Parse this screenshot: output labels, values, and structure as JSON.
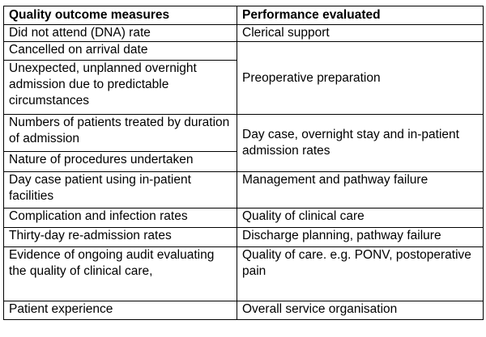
{
  "table": {
    "headers": [
      "Quality outcome measures",
      "Performance evaluated"
    ],
    "rows": [
      {
        "measure": "Did not attend (DNA) rate",
        "performance": "Clerical support"
      },
      {
        "measure": "Cancelled on arrival date",
        "performance": "Preoperative preparation"
      },
      {
        "measure": "Unexpected, unplanned overnight admission due to predictable circumstances",
        "performance": "Preoperative preparation"
      },
      {
        "measure": "Numbers of patients treated by duration of admission",
        "performance": "Day case, overnight stay and in-patient admission rates"
      },
      {
        "measure": "Nature of procedures undertaken",
        "performance": "Day case, overnight stay and in-patient admission rates"
      },
      {
        "measure": "Day case patient using in-patient facilities",
        "performance": "Management and pathway failure"
      },
      {
        "measure": "Complication and infection rates",
        "performance": "Quality of clinical care"
      },
      {
        "measure": "Thirty-day re-admission rates",
        "performance": "Discharge planning, pathway failure"
      },
      {
        "measure": "Evidence of ongoing audit evaluating the quality of clinical care,",
        "performance": "Quality of care. e.g. PONV, postoperative pain"
      },
      {
        "measure": "Patient experience",
        "performance": "Overall service organisation"
      }
    ]
  }
}
